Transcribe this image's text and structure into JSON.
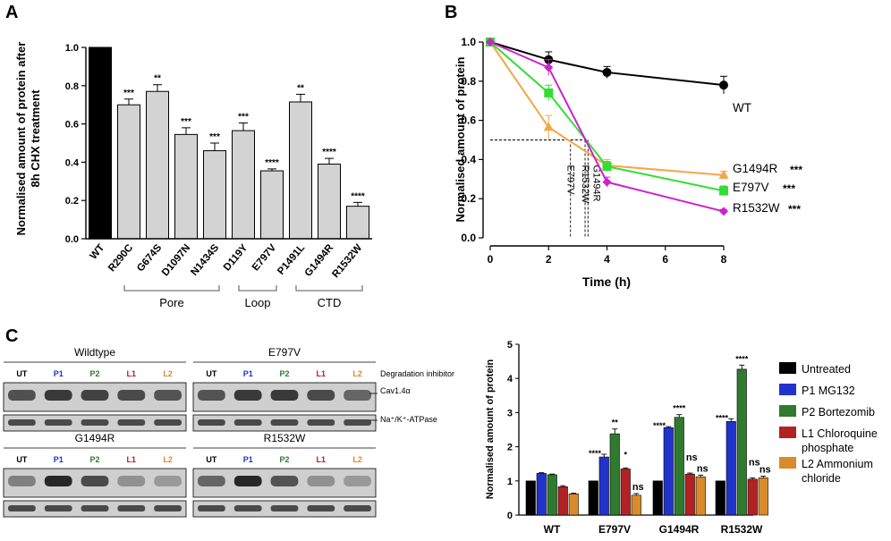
{
  "panels": {
    "a": "A",
    "b": "B",
    "c": "C"
  },
  "colors": {
    "black": "#000000",
    "bar_gray": "#d3d3d3",
    "orange": "#f4a64a",
    "green": "#33dd33",
    "magenta": "#cc22cc",
    "blue": "#2233cc",
    "dkgreen": "#2f7a2f",
    "red": "#b22222",
    "amber": "#d98a2a",
    "blot_bg": "#cfcfcf"
  },
  "chart_data": [
    {
      "id": "A",
      "type": "bar",
      "title": "",
      "ylabel_line1": "Normalised amount of protein after",
      "ylabel_line2": "8h CHX treatment",
      "ylim": [
        0,
        1.0
      ],
      "yticks": [
        "0.0",
        "0.2",
        "0.4",
        "0.6",
        "0.8",
        "1.0"
      ],
      "categories": [
        "WT",
        "R290C",
        "G674S",
        "D1097N",
        "N1434S",
        "D119Y",
        "E797V",
        "P1491L",
        "G1494R",
        "R1532W"
      ],
      "values": [
        1.0,
        0.7,
        0.77,
        0.545,
        0.46,
        0.565,
        0.355,
        0.715,
        0.39,
        0.17
      ],
      "errors": [
        0,
        0.03,
        0.035,
        0.035,
        0.04,
        0.04,
        0.01,
        0.04,
        0.03,
        0.02
      ],
      "significance": [
        "",
        "***",
        "**",
        "***",
        "***",
        "***",
        "****",
        "**",
        "****",
        "****"
      ],
      "groups": [
        {
          "label": "Pore",
          "from": "R290C",
          "to": "N1434S"
        },
        {
          "label": "Loop",
          "from": "D119Y",
          "to": "E797V"
        },
        {
          "label": "CTD",
          "from": "P1491L",
          "to": "R1532W"
        }
      ]
    },
    {
      "id": "B",
      "type": "line",
      "xlabel": "Time (h)",
      "ylabel": "Normalised amount of protein",
      "xlim": [
        0,
        8
      ],
      "ylim": [
        0,
        1.0
      ],
      "xticks": [
        "0",
        "2",
        "4",
        "6",
        "8"
      ],
      "yticks": [
        "0.0",
        "0.2",
        "0.4",
        "0.6",
        "0.8",
        "1.0"
      ],
      "x": [
        0,
        2,
        4,
        8
      ],
      "series": [
        {
          "name": "WT",
          "values": [
            1.0,
            0.91,
            0.845,
            0.78
          ],
          "errors": [
            0,
            0.04,
            0.03,
            0.045
          ],
          "sig": ""
        },
        {
          "name": "G1494R",
          "values": [
            1.0,
            0.565,
            0.37,
            0.32
          ],
          "errors": [
            0,
            0.06,
            0.03,
            0.02
          ],
          "sig": "***"
        },
        {
          "name": "E797V",
          "values": [
            1.0,
            0.74,
            0.365,
            0.24
          ],
          "errors": [
            0,
            0.04,
            0.025,
            0.025
          ],
          "sig": "***"
        },
        {
          "name": "R1532W",
          "values": [
            1.0,
            0.87,
            0.285,
            0.135
          ],
          "errors": [
            0,
            0.04,
            0.025,
            0.01
          ],
          "sig": "***"
        }
      ],
      "half_life_line_y": 0.5,
      "half_life_markers": [
        {
          "label": "E797V",
          "x": 2.75
        },
        {
          "label": "R1532W",
          "x": 3.25
        },
        {
          "label": "G1494R",
          "x": 3.35
        }
      ]
    },
    {
      "id": "C",
      "type": "bar",
      "ylabel": "Normalised amount of protein",
      "ylim": [
        0,
        5
      ],
      "yticks": [
        "0",
        "1",
        "2",
        "3",
        "4",
        "5"
      ],
      "categories": [
        "WT",
        "E797V",
        "G1494R",
        "R1532W"
      ],
      "series": [
        {
          "name": "Untreated",
          "values": [
            1,
            1,
            1,
            1
          ],
          "errors": [
            0,
            0,
            0,
            0
          ],
          "sig": [
            "",
            "",
            "",
            ""
          ]
        },
        {
          "name": "P1 MG132",
          "values": [
            1.22,
            1.7,
            2.56,
            2.74
          ],
          "errors": [
            0.02,
            0.08,
            0.03,
            0.08
          ],
          "sig": [
            "",
            "****",
            "****",
            "****"
          ]
        },
        {
          "name": "P2 Bortezomib",
          "values": [
            1.18,
            2.38,
            2.86,
            4.27
          ],
          "errors": [
            0.02,
            0.14,
            0.08,
            0.12
          ],
          "sig": [
            "",
            "**",
            "****",
            "****"
          ]
        },
        {
          "name": "L1 Chloroquine phosphate",
          "values": [
            0.83,
            1.35,
            1.2,
            1.05
          ],
          "errors": [
            0.03,
            0.03,
            0.03,
            0.04
          ],
          "sig": [
            "",
            "*",
            "ns",
            "ns"
          ]
        },
        {
          "name": "L2 Ammonium chloride",
          "values": [
            0.62,
            0.58,
            1.12,
            1.09
          ],
          "errors": [
            0.02,
            0.05,
            0.05,
            0.05
          ],
          "sig": [
            "",
            "ns",
            "ns",
            "ns"
          ]
        }
      ],
      "legend_entries": [
        {
          "lines": [
            "Untreated"
          ]
        },
        {
          "lines": [
            "P1 MG132"
          ]
        },
        {
          "lines": [
            "P2 Bortezomib"
          ]
        },
        {
          "lines": [
            "L1 Chloroquine",
            "phosphate"
          ]
        },
        {
          "lines": [
            "L2 Ammonium",
            "chloride"
          ]
        }
      ]
    }
  ],
  "western_blots": {
    "lanes": [
      "UT",
      "P1",
      "P2",
      "L1",
      "L2"
    ],
    "degradation_label": "Degradation inhibitor",
    "band_labels": [
      "Cav1.4α",
      "Na⁺/K⁺-ATPase"
    ],
    "blots": [
      {
        "title": "Wildtype"
      },
      {
        "title": "E797V"
      },
      {
        "title": "G1494R"
      },
      {
        "title": "R1532W"
      }
    ]
  }
}
